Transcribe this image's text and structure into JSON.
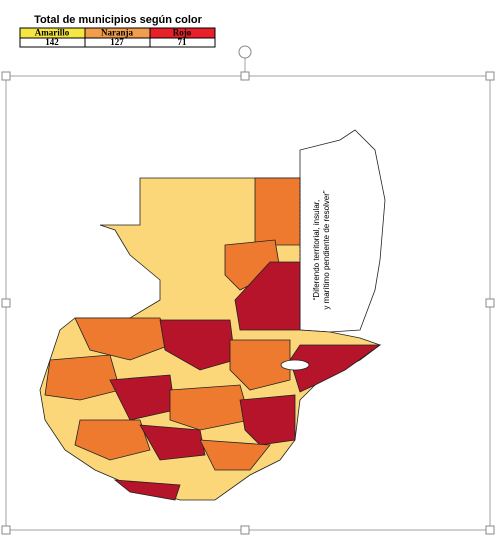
{
  "table": {
    "title": "Total de municipios según color",
    "headers": [
      "Amarillo",
      "Naranja",
      "Rojo"
    ],
    "rows": [
      [
        "142",
        "127",
        "71"
      ]
    ]
  },
  "map": {
    "annotation": [
      "“Diferendo territorial, insular,",
      "y marítimo pendiente de resolver”"
    ]
  }
}
